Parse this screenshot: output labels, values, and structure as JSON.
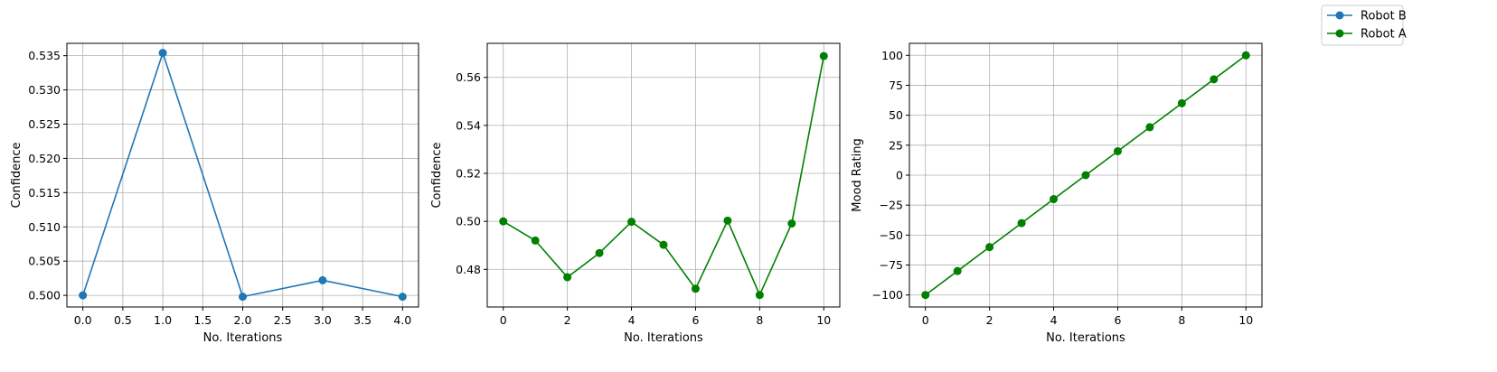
{
  "legend": {
    "placement": "top-right",
    "entries": [
      {
        "label": "Robot B",
        "color": "#1f77b4"
      },
      {
        "label": "Robot A",
        "color": "#008000"
      }
    ]
  },
  "chart_data": [
    {
      "type": "line",
      "xlabel": "No. Iterations",
      "ylabel": "Confidence",
      "grid": true,
      "xlim": [
        -0.2,
        4.2
      ],
      "ylim": [
        0.4983,
        0.5368
      ],
      "xticks": [
        0.0,
        0.5,
        1.0,
        1.5,
        2.0,
        2.5,
        3.0,
        3.5,
        4.0
      ],
      "xtick_labels": [
        "0.0",
        "0.5",
        "1.0",
        "1.5",
        "2.0",
        "2.5",
        "3.0",
        "3.5",
        "4.0"
      ],
      "yticks": [
        0.5,
        0.505,
        0.51,
        0.515,
        0.52,
        0.525,
        0.53,
        0.535
      ],
      "ytick_labels": [
        "0.500",
        "0.505",
        "0.510",
        "0.515",
        "0.520",
        "0.525",
        "0.530",
        "0.535"
      ],
      "series": [
        {
          "name": "Robot B",
          "color": "#1f77b4",
          "marker": "circle",
          "x": [
            0,
            1,
            2,
            3,
            4
          ],
          "y": [
            0.5,
            0.5354,
            0.4998,
            0.5022,
            0.4998
          ]
        }
      ]
    },
    {
      "type": "line",
      "xlabel": "No. Iterations",
      "ylabel": "Confidence",
      "grid": true,
      "xlim": [
        -0.5,
        10.5
      ],
      "ylim": [
        0.4643,
        0.5742
      ],
      "xticks": [
        0,
        2,
        4,
        6,
        8,
        10
      ],
      "xtick_labels": [
        "0",
        "2",
        "4",
        "6",
        "8",
        "10"
      ],
      "yticks": [
        0.48,
        0.5,
        0.52,
        0.54,
        0.56
      ],
      "ytick_labels": [
        "0.48",
        "0.50",
        "0.52",
        "0.54",
        "0.56"
      ],
      "series": [
        {
          "name": "Robot A",
          "color": "#008000",
          "marker": "circle",
          "x": [
            0,
            1,
            2,
            3,
            4,
            5,
            6,
            7,
            8,
            9,
            10
          ],
          "y": [
            0.5,
            0.492,
            0.4767,
            0.4868,
            0.4998,
            0.4902,
            0.4719,
            0.5003,
            0.4693,
            0.4991,
            0.5689
          ]
        }
      ]
    },
    {
      "type": "line",
      "xlabel": "No. Iterations",
      "ylabel": "Mood Rating",
      "grid": true,
      "xlim": [
        -0.5,
        10.5
      ],
      "ylim": [
        -110,
        110
      ],
      "xticks": [
        0,
        2,
        4,
        6,
        8,
        10
      ],
      "xtick_labels": [
        "0",
        "2",
        "4",
        "6",
        "8",
        "10"
      ],
      "yticks": [
        -100,
        -75,
        -50,
        -25,
        0,
        25,
        50,
        75,
        100
      ],
      "ytick_labels": [
        "−100",
        "−75",
        "−50",
        "−25",
        "0",
        "25",
        "50",
        "75",
        "100"
      ],
      "series": [
        {
          "name": "Robot A",
          "color": "#008000",
          "marker": "circle",
          "x": [
            0,
            1,
            2,
            3,
            4,
            5,
            6,
            7,
            8,
            9,
            10
          ],
          "y": [
            -100,
            -80,
            -60,
            -40,
            -20,
            0,
            20,
            40,
            60,
            80,
            100
          ]
        }
      ]
    }
  ]
}
